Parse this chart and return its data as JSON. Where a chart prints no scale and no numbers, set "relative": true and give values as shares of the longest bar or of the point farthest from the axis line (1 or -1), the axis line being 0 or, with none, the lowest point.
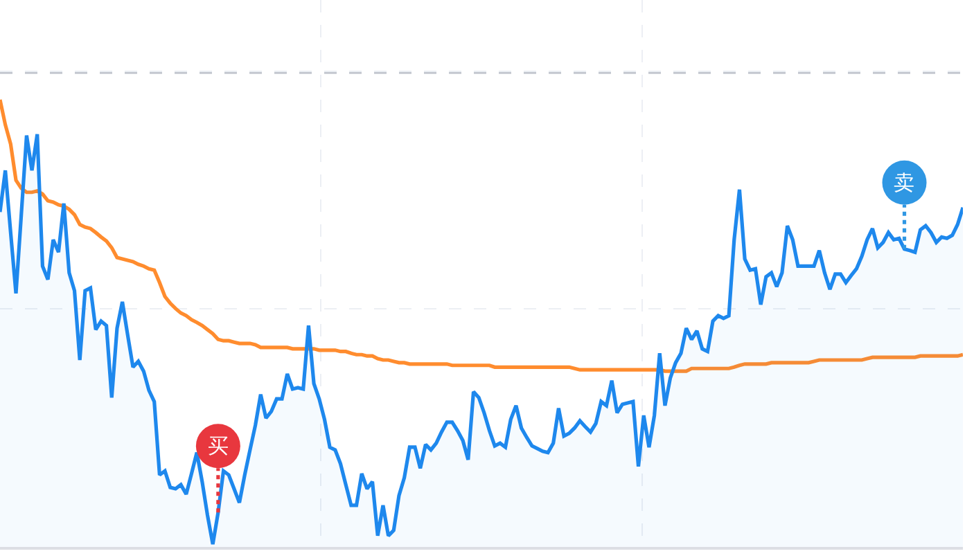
{
  "chart_data": {
    "type": "line",
    "relative": true,
    "grid": true,
    "tick_labels": false,
    "categories": [
      null,
      null,
      null,
      null,
      null,
      null,
      null,
      null,
      null,
      null,
      null,
      null,
      null,
      null,
      null,
      null,
      null,
      null,
      null,
      null,
      null,
      null,
      null,
      null,
      null,
      null,
      null,
      null,
      null,
      null,
      null,
      null,
      null,
      null,
      null,
      null,
      null,
      null,
      null,
      null,
      null,
      null,
      null,
      null,
      null,
      null,
      null,
      null,
      null,
      null,
      null,
      null,
      null,
      null,
      null,
      null,
      null,
      null,
      null,
      null,
      null,
      null,
      null,
      null,
      null,
      null,
      null,
      null,
      null,
      null,
      null,
      null,
      null,
      null,
      null,
      null,
      null,
      null,
      null,
      null,
      null,
      null,
      null,
      null,
      null,
      null,
      null,
      null,
      null,
      null,
      null,
      null,
      null,
      null,
      null,
      null,
      null,
      null,
      null,
      null,
      null,
      null,
      null,
      null,
      null,
      null,
      null,
      null,
      null,
      null,
      null,
      null,
      null,
      null,
      null,
      null,
      null,
      null,
      null,
      null,
      null,
      null,
      null,
      null,
      null,
      null,
      null,
      null,
      null,
      null,
      null,
      null,
      null,
      null,
      null,
      null,
      null,
      null,
      null,
      null,
      null,
      null,
      null,
      null,
      null,
      null,
      null,
      null,
      null,
      null,
      null,
      null,
      null,
      null,
      null,
      null,
      null,
      null,
      null,
      null,
      null,
      null,
      null,
      null,
      null,
      null,
      null,
      null,
      null,
      null,
      null,
      null,
      null,
      null,
      null,
      null,
      null,
      null,
      null,
      null,
      null,
      null
    ],
    "series": [
      {
        "color": "#ff8c2e",
        "values": [
          1.0,
          0.944,
          0.901,
          0.82,
          0.802,
          0.793,
          0.793,
          0.796,
          0.789,
          0.774,
          0.771,
          0.765,
          0.762,
          0.755,
          0.743,
          0.721,
          0.715,
          0.712,
          0.703,
          0.693,
          0.684,
          0.669,
          0.647,
          0.644,
          0.641,
          0.638,
          0.632,
          0.628,
          0.622,
          0.619,
          0.591,
          0.56,
          0.545,
          0.533,
          0.523,
          0.517,
          0.508,
          0.502,
          0.495,
          0.486,
          0.477,
          0.464,
          0.461,
          0.461,
          0.458,
          0.455,
          0.455,
          0.455,
          0.452,
          0.446,
          0.446,
          0.446,
          0.446,
          0.446,
          0.446,
          0.443,
          0.443,
          0.443,
          0.443,
          0.443,
          0.44,
          0.44,
          0.44,
          0.44,
          0.437,
          0.437,
          0.433,
          0.43,
          0.43,
          0.427,
          0.427,
          0.421,
          0.418,
          0.418,
          0.415,
          0.412,
          0.412,
          0.409,
          0.409,
          0.409,
          0.409,
          0.409,
          0.409,
          0.409,
          0.409,
          0.406,
          0.406,
          0.406,
          0.406,
          0.406,
          0.406,
          0.406,
          0.406,
          0.402,
          0.402,
          0.402,
          0.402,
          0.402,
          0.402,
          0.402,
          0.402,
          0.402,
          0.402,
          0.402,
          0.402,
          0.402,
          0.402,
          0.402,
          0.399,
          0.396,
          0.396,
          0.396,
          0.396,
          0.396,
          0.396,
          0.396,
          0.396,
          0.396,
          0.396,
          0.396,
          0.396,
          0.396,
          0.396,
          0.396,
          0.396,
          0.393,
          0.393,
          0.393,
          0.393,
          0.393,
          0.399,
          0.399,
          0.399,
          0.399,
          0.399,
          0.399,
          0.399,
          0.399,
          0.402,
          0.406,
          0.409,
          0.409,
          0.409,
          0.409,
          0.409,
          0.412,
          0.412,
          0.412,
          0.412,
          0.412,
          0.412,
          0.412,
          0.412,
          0.415,
          0.418,
          0.418,
          0.418,
          0.418,
          0.418,
          0.418,
          0.418,
          0.418,
          0.418,
          0.421,
          0.424,
          0.424,
          0.424,
          0.424,
          0.424,
          0.424,
          0.424,
          0.424,
          0.424,
          0.427,
          0.427,
          0.427,
          0.427,
          0.427,
          0.427,
          0.427,
          0.427,
          0.43
        ]
      },
      {
        "type": "area",
        "color": "#1e88ed",
        "values": [
          0.749,
          0.842,
          0.703,
          0.567,
          0.743,
          0.92,
          0.842,
          0.923,
          0.628,
          0.598,
          0.687,
          0.659,
          0.768,
          0.613,
          0.573,
          0.418,
          0.573,
          0.579,
          0.486,
          0.505,
          0.495,
          0.334,
          0.489,
          0.548,
          0.474,
          0.402,
          0.415,
          0.393,
          0.35,
          0.325,
          0.161,
          0.17,
          0.133,
          0.13,
          0.139,
          0.118,
          0.164,
          0.211,
          0.146,
          0.071,
          0.006,
          0.077,
          0.17,
          0.161,
          0.13,
          0.099,
          0.161,
          0.217,
          0.272,
          0.341,
          0.288,
          0.303,
          0.331,
          0.331,
          0.387,
          0.353,
          0.356,
          0.353,
          0.495,
          0.365,
          0.331,
          0.285,
          0.223,
          0.217,
          0.186,
          0.139,
          0.093,
          0.093,
          0.164,
          0.13,
          0.146,
          0.025,
          0.093,
          0.025,
          0.037,
          0.115,
          0.155,
          0.223,
          0.223,
          0.176,
          0.229,
          0.217,
          0.232,
          0.257,
          0.279,
          0.279,
          0.26,
          0.238,
          0.195,
          0.347,
          0.334,
          0.3,
          0.26,
          0.226,
          0.232,
          0.223,
          0.285,
          0.316,
          0.266,
          0.245,
          0.226,
          0.22,
          0.214,
          0.211,
          0.232,
          0.31,
          0.248,
          0.254,
          0.266,
          0.282,
          0.269,
          0.257,
          0.276,
          0.325,
          0.316,
          0.372,
          0.3,
          0.319,
          0.322,
          0.325,
          0.18,
          0.294,
          0.223,
          0.294,
          0.433,
          0.316,
          0.378,
          0.412,
          0.433,
          0.489,
          0.464,
          0.483,
          0.443,
          0.437,
          0.505,
          0.517,
          0.511,
          0.517,
          0.687,
          0.799,
          0.644,
          0.619,
          0.622,
          0.542,
          0.604,
          0.613,
          0.582,
          0.613,
          0.718,
          0.687,
          0.628,
          0.628,
          0.628,
          0.628,
          0.663,
          0.613,
          0.576,
          0.61,
          0.61,
          0.591,
          0.607,
          0.622,
          0.65,
          0.687,
          0.712,
          0.669,
          0.681,
          0.703,
          0.687,
          0.69,
          0.666,
          0.663,
          0.659,
          0.709,
          0.718,
          0.703,
          0.681,
          0.693,
          0.69,
          0.697,
          0.721,
          0.759
        ]
      }
    ],
    "ref_lines": [
      {
        "axis": "y",
        "value": 1.06,
        "line_style": "dashed",
        "color": "#c3c7cf"
      }
    ],
    "annotations": [
      {
        "text": "买",
        "y": 0.077
      },
      {
        "text": "卖",
        "y": 0.666
      }
    ]
  }
}
